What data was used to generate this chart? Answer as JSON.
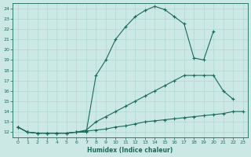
{
  "xlabel": "Humidex (Indice chaleur)",
  "bg_color": "#cce8e4",
  "line_color": "#1a6b5a",
  "grid_color": "#b0d8d0",
  "xlim": [
    -0.5,
    23.5
  ],
  "ylim": [
    11.5,
    24.5
  ],
  "xticks": [
    0,
    1,
    2,
    3,
    4,
    5,
    6,
    7,
    8,
    9,
    10,
    11,
    12,
    13,
    14,
    15,
    16,
    17,
    18,
    19,
    20,
    21,
    22,
    23
  ],
  "yticks": [
    12,
    13,
    14,
    15,
    16,
    17,
    18,
    19,
    20,
    21,
    22,
    23,
    24
  ],
  "line1_x": [
    0,
    1,
    2,
    3,
    4,
    5,
    6,
    7,
    8,
    9,
    10,
    11,
    12,
    13,
    14,
    15,
    16,
    17,
    18,
    19,
    20
  ],
  "line1_y": [
    12.5,
    12.0,
    11.9,
    11.9,
    11.9,
    11.9,
    12.0,
    12.0,
    17.5,
    19.0,
    21.0,
    22.2,
    23.2,
    23.8,
    24.2,
    23.9,
    23.2,
    22.5,
    19.2,
    19.0,
    21.8
  ],
  "line2_x": [
    0,
    1,
    2,
    3,
    4,
    5,
    6,
    7,
    8,
    9,
    10,
    11,
    12,
    13,
    14,
    15,
    16,
    17,
    18,
    19,
    20,
    21,
    22
  ],
  "line2_y": [
    12.5,
    12.0,
    11.9,
    11.9,
    11.9,
    11.9,
    12.0,
    12.2,
    13.0,
    13.5,
    14.0,
    14.5,
    15.0,
    15.5,
    16.0,
    16.5,
    17.0,
    17.5,
    17.5,
    17.5,
    17.5,
    16.0,
    15.2
  ],
  "line3_x": [
    0,
    1,
    2,
    3,
    4,
    5,
    6,
    7,
    8,
    9,
    10,
    11,
    12,
    13,
    14,
    15,
    16,
    17,
    18,
    19,
    20,
    21,
    22,
    23
  ],
  "line3_y": [
    12.5,
    12.0,
    11.9,
    11.9,
    11.9,
    11.9,
    12.0,
    12.1,
    12.2,
    12.3,
    12.5,
    12.6,
    12.8,
    13.0,
    13.1,
    13.2,
    13.3,
    13.4,
    13.5,
    13.6,
    13.7,
    13.8,
    14.0,
    14.0
  ]
}
